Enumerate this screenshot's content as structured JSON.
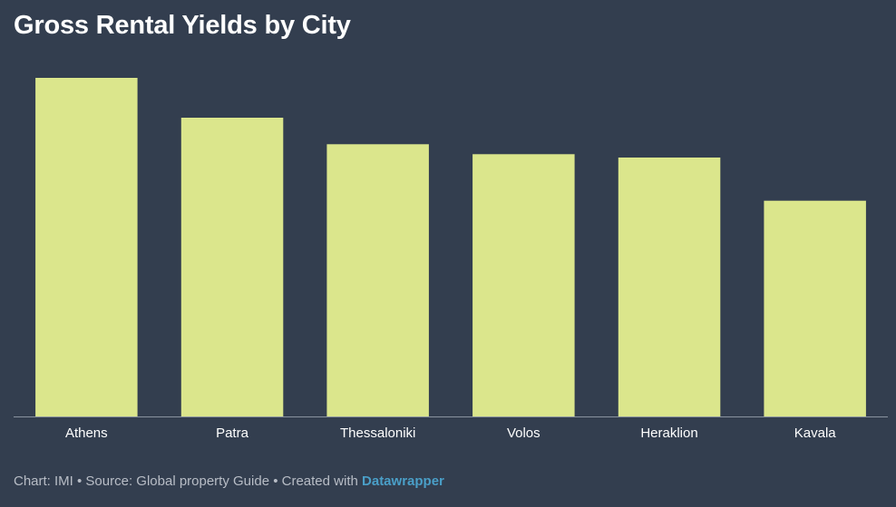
{
  "chart_data": {
    "type": "bar",
    "title": "Gross Rental Yields by City",
    "categories": [
      "Athens",
      "Patra",
      "Thessaloniki",
      "Volos",
      "Heraklion",
      "Kavala"
    ],
    "values": [
      5.1,
      4.5,
      4.1,
      3.95,
      3.9,
      3.25
    ],
    "ylim": [
      0,
      5.1
    ],
    "bar_color": "#dbe68c",
    "axis_color": "#8a93a0",
    "label_color": "#ffffff",
    "grid": false,
    "legend": "none"
  },
  "footer": {
    "prefix": "Chart: IMI • Source: Global property Guide • Created with ",
    "brand": "Datawrapper"
  },
  "colors": {
    "background": "#333e4f",
    "footer_text": "#b8bdc6",
    "brand": "#4a9fc8"
  }
}
